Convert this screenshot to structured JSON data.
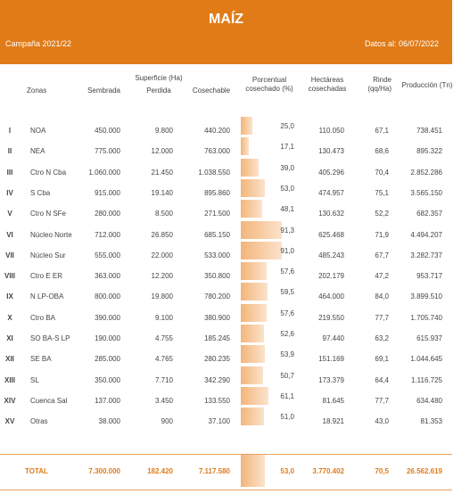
{
  "header": {
    "title": "MAÍZ",
    "campaign": "Campaña 2021/22",
    "date": "Datos al: 06/07/2022"
  },
  "columns": {
    "zonas": "Zonas",
    "superficie": "Superficie (Ha)",
    "sembrada": "Sembrada",
    "perdida": "Perdida",
    "cosechable": "Cosechable",
    "porcentual": "Porcentual cosechado (%)",
    "hectareas": "Hectáreas cosechadas",
    "rinde": "Rinde (qq/Ha)",
    "produccion": "Producción (Tn)"
  },
  "rows": [
    {
      "num": "I",
      "zona": "NOA",
      "sembrada": "450.000",
      "perdida": "9.800",
      "cosechable": "440.200",
      "cosechado": {
        "value": 25.0,
        "label": "25,0"
      },
      "hectareas": "110.050",
      "rinde": "67,1",
      "produccion": "738.451"
    },
    {
      "num": "II",
      "zona": "NEA",
      "sembrada": "775.000",
      "perdida": "12.000",
      "cosechable": "763.000",
      "cosechado": {
        "value": 17.1,
        "label": "17,1"
      },
      "hectareas": "130.473",
      "rinde": "68,6",
      "produccion": "895.322"
    },
    {
      "num": "III",
      "zona": "Ctro N Cba",
      "sembrada": "1.060.000",
      "perdida": "21.450",
      "cosechable": "1.038.550",
      "cosechado": {
        "value": 39.0,
        "label": "39,0"
      },
      "hectareas": "405.296",
      "rinde": "70,4",
      "produccion": "2.852.286"
    },
    {
      "num": "IV",
      "zona": "S Cba",
      "sembrada": "915.000",
      "perdida": "19.140",
      "cosechable": "895.860",
      "cosechado": {
        "value": 53.0,
        "label": "53,0"
      },
      "hectareas": "474.957",
      "rinde": "75,1",
      "produccion": "3.565.150"
    },
    {
      "num": "V",
      "zona": "Ctro N SFe",
      "sembrada": "280.000",
      "perdida": "8.500",
      "cosechable": "271.500",
      "cosechado": {
        "value": 48.1,
        "label": "48,1"
      },
      "hectareas": "130.632",
      "rinde": "52,2",
      "produccion": "682.357"
    },
    {
      "num": "VI",
      "zona": "Núcleo Norte",
      "sembrada": "712.000",
      "perdida": "26.850",
      "cosechable": "685.150",
      "cosechado": {
        "value": 91.3,
        "label": "91,3"
      },
      "hectareas": "625.468",
      "rinde": "71,9",
      "produccion": "4.494.207"
    },
    {
      "num": "VII",
      "zona": "Núcleo Sur",
      "sembrada": "555.000",
      "perdida": "22.000",
      "cosechable": "533.000",
      "cosechado": {
        "value": 91.0,
        "label": "91,0"
      },
      "hectareas": "485.243",
      "rinde": "67,7",
      "produccion": "3.282.737"
    },
    {
      "num": "VIII",
      "zona": "Ctro E ER",
      "sembrada": "363.000",
      "perdida": "12.200",
      "cosechable": "350.800",
      "cosechado": {
        "value": 57.6,
        "label": "57,6"
      },
      "hectareas": "202.179",
      "rinde": "47,2",
      "produccion": "953.717"
    },
    {
      "num": "IX",
      "zona": "N LP-OBA",
      "sembrada": "800.000",
      "perdida": "19.800",
      "cosechable": "780.200",
      "cosechado": {
        "value": 59.5,
        "label": "59,5"
      },
      "hectareas": "464.000",
      "rinde": "84,0",
      "produccion": "3.899.510"
    },
    {
      "num": "X",
      "zona": "Ctro BA",
      "sembrada": "390.000",
      "perdida": "9.100",
      "cosechable": "380.900",
      "cosechado": {
        "value": 57.6,
        "label": "57,6"
      },
      "hectareas": "219.550",
      "rinde": "77,7",
      "produccion": "1.705.740"
    },
    {
      "num": "XI",
      "zona": "SO BA-S LP",
      "sembrada": "190.000",
      "perdida": "4.755",
      "cosechable": "185.245",
      "cosechado": {
        "value": 52.6,
        "label": "52,6"
      },
      "hectareas": "97.440",
      "rinde": "63,2",
      "produccion": "615.937"
    },
    {
      "num": "XII",
      "zona": "SE BA",
      "sembrada": "285.000",
      "perdida": "4.765",
      "cosechable": "280.235",
      "cosechado": {
        "value": 53.9,
        "label": "53,9"
      },
      "hectareas": "151.169",
      "rinde": "69,1",
      "produccion": "1.044.645"
    },
    {
      "num": "XIII",
      "zona": "SL",
      "sembrada": "350.000",
      "perdida": "7.710",
      "cosechable": "342.290",
      "cosechado": {
        "value": 50.7,
        "label": "50,7"
      },
      "hectareas": "173.379",
      "rinde": "64,4",
      "produccion": "1.116.725"
    },
    {
      "num": "XIV",
      "zona": "Cuenca Sal",
      "sembrada": "137.000",
      "perdida": "3.450",
      "cosechable": "133.550",
      "cosechado": {
        "value": 61.1,
        "label": "61,1"
      },
      "hectareas": "81.645",
      "rinde": "77,7",
      "produccion": "634.480"
    },
    {
      "num": "XV",
      "zona": "Otras",
      "sembrada": "38.000",
      "perdida": "900",
      "cosechable": "37.100",
      "cosechado": {
        "value": 51.0,
        "label": "51,0"
      },
      "hectareas": "18.921",
      "rinde": "43,0",
      "produccion": "81.353"
    }
  ],
  "total": {
    "zona": "TOTAL",
    "sembrada": "7.300.000",
    "perdida": "182.420",
    "cosechable": "7.117.580",
    "cosechado": {
      "value": 53.0,
      "label": "53,0"
    },
    "hectareas": "3.770.402",
    "rinde": "70,5",
    "produccion": "26.562.619"
  }
}
